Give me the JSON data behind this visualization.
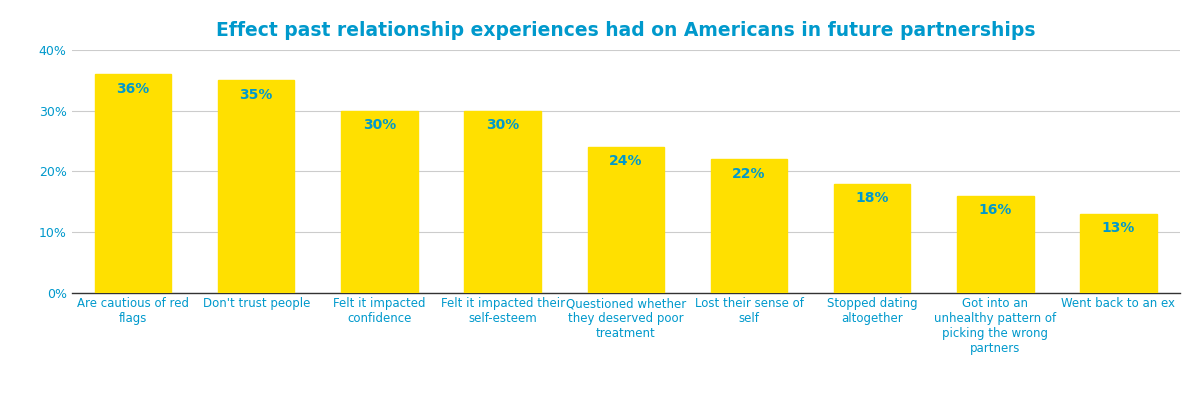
{
  "title": "Effect past relationship experiences had on Americans in future partnerships",
  "title_color": "#0099CC",
  "title_fontsize": 13.5,
  "categories": [
    "Are cautious of red\nflags",
    "Don't trust people",
    "Felt it impacted\nconfidence",
    "Felt it impacted their\nself-esteem",
    "Questioned whether\nthey deserved poor\ntreatment",
    "Lost their sense of\nself",
    "Stopped dating\naltogether",
    "Got into an\nunhealthy pattern of\npicking the wrong\npartners",
    "Went back to an ex"
  ],
  "values": [
    36,
    35,
    30,
    30,
    24,
    22,
    18,
    16,
    13
  ],
  "bar_color": "#FFE000",
  "label_color": "#0099CC",
  "label_fontsize": 10,
  "tick_color": "#0099CC",
  "ytick_fontsize": 9,
  "xtick_fontsize": 8.5,
  "ylim": [
    0,
    40
  ],
  "yticks": [
    0,
    10,
    20,
    30,
    40
  ],
  "ytick_labels": [
    "0%",
    "10%",
    "20%",
    "30%",
    "40%"
  ],
  "grid_color": "#cccccc",
  "background_color": "#ffffff",
  "figsize": [
    11.92,
    4.18
  ],
  "dpi": 100
}
